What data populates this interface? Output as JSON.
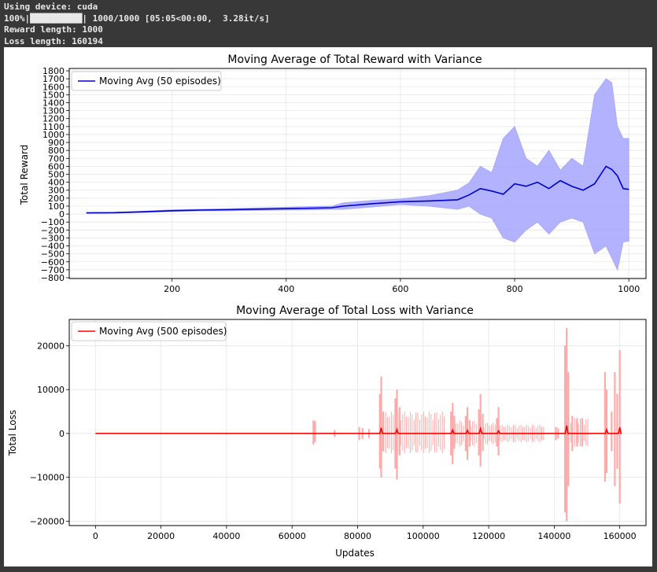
{
  "console": {
    "line1": "Using device: cuda",
    "line2": "100%|██████████| 1000/1000 [05:05<00:00,  3.28it/s]",
    "line3": "Reward length: 1000",
    "line4": "Loss length: 160194"
  },
  "colors": {
    "reward": "#0000cc",
    "reward_fill": "#aaaaff",
    "loss": "#ff0000",
    "loss_fill": "#ffaaaa"
  },
  "chart_data": [
    {
      "type": "line",
      "title": "Moving Average of Total Reward with Variance",
      "xlabel": "",
      "ylabel": "Total Reward",
      "legend": {
        "label": "Moving Avg (50 episodes)",
        "placement": "top-left"
      },
      "xlim": [
        20,
        1030
      ],
      "ylim": [
        -810,
        1830
      ],
      "xticks": [
        200,
        400,
        600,
        800,
        1000
      ],
      "yticks": [
        -800,
        -700,
        -600,
        -500,
        -400,
        -300,
        -200,
        -100,
        0,
        100,
        200,
        300,
        400,
        500,
        600,
        700,
        800,
        900,
        1000,
        1100,
        1200,
        1300,
        1400,
        1500,
        1600,
        1700,
        1800
      ],
      "grid": true,
      "x": [
        50,
        100,
        150,
        200,
        250,
        300,
        350,
        400,
        450,
        480,
        500,
        550,
        600,
        650,
        700,
        720,
        740,
        760,
        780,
        800,
        820,
        840,
        860,
        880,
        900,
        920,
        940,
        960,
        970,
        980,
        990,
        1000
      ],
      "mean": [
        15,
        18,
        28,
        42,
        50,
        55,
        62,
        68,
        75,
        80,
        100,
        130,
        155,
        165,
        180,
        240,
        320,
        290,
        250,
        380,
        350,
        400,
        320,
        420,
        350,
        300,
        380,
        600,
        560,
        480,
        320,
        310
      ],
      "upper": [
        18,
        23,
        35,
        52,
        60,
        68,
        77,
        85,
        95,
        100,
        140,
        170,
        190,
        230,
        300,
        390,
        600,
        520,
        950,
        1100,
        700,
        600,
        800,
        550,
        700,
        600,
        1500,
        1700,
        1650,
        1100,
        950,
        950
      ],
      "lower": [
        12,
        13,
        21,
        32,
        40,
        42,
        47,
        51,
        55,
        60,
        60,
        90,
        120,
        100,
        60,
        100,
        0,
        -50,
        -300,
        -350,
        -200,
        -100,
        -250,
        -100,
        -50,
        -100,
        -500,
        -400,
        -550,
        -700,
        -350,
        -340
      ]
    },
    {
      "type": "line",
      "title": "Moving Average of Total Loss with Variance",
      "xlabel": "Updates",
      "ylabel": "Total Loss",
      "legend": {
        "label": "Moving Avg (500 episodes)",
        "placement": "top-left"
      },
      "xlim": [
        -8000,
        168000
      ],
      "ylim": [
        -21000,
        26000
      ],
      "xticks": [
        0,
        20000,
        40000,
        60000,
        80000,
        100000,
        120000,
        140000,
        160000
      ],
      "yticks": [
        -20000,
        -10000,
        0,
        10000,
        20000
      ],
      "grid": true,
      "spikes": [
        {
          "x": 66500,
          "up": 3000,
          "down": -2500
        },
        {
          "x": 67000,
          "up": 2800,
          "down": -2000
        },
        {
          "x": 73000,
          "up": 800,
          "down": -800
        },
        {
          "x": 80500,
          "up": 1500,
          "down": -1500
        },
        {
          "x": 81500,
          "up": 1200,
          "down": -1200
        },
        {
          "x": 83500,
          "up": 1000,
          "down": -1000
        },
        {
          "x": 86800,
          "up": 9000,
          "down": -8000
        },
        {
          "x": 87200,
          "up": 13000,
          "down": -10000
        },
        {
          "x": 87800,
          "up": 5000,
          "down": -4000
        },
        {
          "x": 91500,
          "up": 8000,
          "down": -8000
        },
        {
          "x": 92000,
          "up": 10000,
          "down": -10500
        },
        {
          "x": 92800,
          "up": 6000,
          "down": -5000
        },
        {
          "x": 108500,
          "up": 5000,
          "down": -5000
        },
        {
          "x": 109000,
          "up": 7000,
          "down": -7000
        },
        {
          "x": 109500,
          "up": 4000,
          "down": -3500
        },
        {
          "x": 113000,
          "up": 4000,
          "down": -4000
        },
        {
          "x": 113500,
          "up": 6000,
          "down": -6000
        },
        {
          "x": 114200,
          "up": 3000,
          "down": -3000
        },
        {
          "x": 117000,
          "up": 5500,
          "down": -5000
        },
        {
          "x": 117500,
          "up": 9000,
          "down": -7500
        },
        {
          "x": 118200,
          "up": 4500,
          "down": -4000
        },
        {
          "x": 122500,
          "up": 3500,
          "down": -3000
        },
        {
          "x": 123000,
          "up": 6000,
          "down": -5000
        },
        {
          "x": 140500,
          "up": 1500,
          "down": -1500
        },
        {
          "x": 141200,
          "up": 1200,
          "down": -1200
        },
        {
          "x": 143300,
          "up": 20000,
          "down": -18000
        },
        {
          "x": 143800,
          "up": 24000,
          "down": -20000
        },
        {
          "x": 144300,
          "up": 14000,
          "down": -12000
        },
        {
          "x": 145500,
          "up": 4000,
          "down": -4000
        },
        {
          "x": 147000,
          "up": 3500,
          "down": -3000
        },
        {
          "x": 148500,
          "up": 3500,
          "down": -3000
        },
        {
          "x": 155500,
          "up": 14000,
          "down": -11000
        },
        {
          "x": 156000,
          "up": 10000,
          "down": -9000
        },
        {
          "x": 157500,
          "up": 5000,
          "down": -4000
        },
        {
          "x": 158500,
          "up": 14000,
          "down": -12000
        },
        {
          "x": 159200,
          "up": 9000,
          "down": -8000
        },
        {
          "x": 160000,
          "up": 19000,
          "down": -16000
        }
      ],
      "bands": [
        {
          "from": 88000,
          "to": 107000,
          "up": 5000,
          "down": -4500
        },
        {
          "from": 110000,
          "to": 112500,
          "up": 3000,
          "down": -3000
        },
        {
          "from": 114500,
          "to": 116500,
          "up": 3000,
          "down": -3000
        },
        {
          "from": 118500,
          "to": 122000,
          "up": 2500,
          "down": -2500
        },
        {
          "from": 123500,
          "to": 137000,
          "up": 2000,
          "down": -2000
        },
        {
          "from": 144500,
          "to": 150500,
          "up": 3500,
          "down": -3000
        }
      ],
      "mean_bumps": [
        {
          "x": 87200,
          "y": 1300
        },
        {
          "x": 92000,
          "y": 900
        },
        {
          "x": 109000,
          "y": 800
        },
        {
          "x": 113500,
          "y": 700
        },
        {
          "x": 117500,
          "y": 1100
        },
        {
          "x": 123000,
          "y": 600
        },
        {
          "x": 143800,
          "y": 1800
        },
        {
          "x": 156000,
          "y": 900
        },
        {
          "x": 160000,
          "y": 1400
        }
      ],
      "mean_end": 160194
    }
  ]
}
